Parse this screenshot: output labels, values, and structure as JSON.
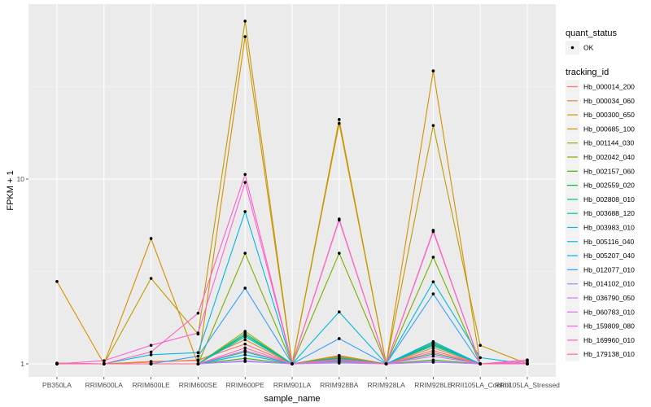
{
  "chart_data": {
    "type": "line",
    "title": "",
    "xlabel": "sample_name",
    "ylabel": "FPKM + 1",
    "yscale": "log10",
    "ylim": [
      0.9,
      85
    ],
    "yticks": [
      1,
      10
    ],
    "ytick_labels": [
      "1",
      "10"
    ],
    "grid": true,
    "categories": [
      "PB350LA",
      "RRIM600LA",
      "RRIM600LE",
      "RRIM600SE",
      "RRIM600PE",
      "RRIM901LA",
      "RRIM928BA",
      "RRIM928LA",
      "RRIM928LE",
      "RRII105LA_Control",
      "RRII105LA_Stressed"
    ],
    "legend_placement": "right",
    "legends": [
      {
        "title": "quant_status",
        "entries": [
          {
            "label": "OK",
            "symbol": "point",
            "color": "#000000"
          }
        ]
      },
      {
        "title": "tracking_id"
      }
    ],
    "series": [
      {
        "name": "Hb_000014_200",
        "color": "#F8766D",
        "values": [
          1.0,
          1.0,
          1.02,
          1.05,
          1.28,
          1.0,
          1.09,
          1.0,
          1.18,
          1.0,
          1.0
        ]
      },
      {
        "name": "Hb_000034_060",
        "color": "#EA8331",
        "values": [
          1.0,
          1.0,
          1.03,
          1.04,
          1.35,
          1.0,
          1.11,
          1.0,
          1.22,
          1.0,
          1.0
        ]
      },
      {
        "name": "Hb_000300_650",
        "color": "#D89000",
        "values": [
          2.79,
          1.0,
          4.77,
          1.0,
          59.0,
          1.0,
          20.0,
          1.0,
          38.5,
          1.0,
          1.0
        ]
      },
      {
        "name": "Hb_000685_100",
        "color": "#C09B00",
        "values": [
          1.0,
          1.0,
          2.9,
          1.45,
          71.6,
          1.0,
          21.0,
          1.0,
          19.5,
          1.26,
          1.0
        ]
      },
      {
        "name": "Hb_001144_030",
        "color": "#A3A500",
        "values": [
          1.0,
          1.0,
          1.0,
          1.0,
          1.5,
          1.0,
          1.1,
          1.0,
          1.3,
          1.0,
          1.0
        ]
      },
      {
        "name": "Hb_002042_040",
        "color": "#7CAE00",
        "values": [
          1.0,
          1.0,
          1.0,
          1.0,
          3.97,
          1.0,
          3.97,
          1.0,
          3.78,
          1.0,
          1.0
        ]
      },
      {
        "name": "Hb_002157_060",
        "color": "#39B600",
        "values": [
          1.0,
          1.0,
          1.0,
          1.0,
          1.07,
          1.0,
          1.03,
          1.0,
          1.05,
          1.0,
          1.0
        ]
      },
      {
        "name": "Hb_002559_020",
        "color": "#00BB4E",
        "values": [
          1.0,
          1.0,
          1.0,
          1.0,
          1.43,
          1.0,
          1.07,
          1.0,
          1.27,
          1.0,
          1.0
        ]
      },
      {
        "name": "Hb_002808_010",
        "color": "#00BF7D",
        "values": [
          1.0,
          1.0,
          1.0,
          1.0,
          1.16,
          1.0,
          1.05,
          1.0,
          1.13,
          1.0,
          1.0
        ]
      },
      {
        "name": "Hb_003688_120",
        "color": "#00C1A3",
        "values": [
          1.0,
          1.0,
          1.0,
          1.0,
          1.46,
          1.0,
          1.08,
          1.0,
          1.29,
          1.0,
          1.0
        ]
      },
      {
        "name": "Hb_003983_010",
        "color": "#00BFC4",
        "values": [
          1.0,
          1.0,
          1.0,
          1.0,
          1.4,
          1.0,
          1.06,
          1.0,
          1.25,
          1.0,
          1.0
        ]
      },
      {
        "name": "Hb_005116_040",
        "color": "#00BAE0",
        "values": [
          1.0,
          1.0,
          1.12,
          1.15,
          6.67,
          1.0,
          1.91,
          1.0,
          2.78,
          1.08,
          1.0
        ]
      },
      {
        "name": "Hb_005207_040",
        "color": "#00B0F6",
        "values": [
          1.0,
          1.0,
          1.0,
          1.0,
          1.12,
          1.0,
          1.04,
          1.0,
          1.32,
          1.0,
          1.0
        ]
      },
      {
        "name": "Hb_012077_010",
        "color": "#35A2FF",
        "values": [
          1.0,
          1.0,
          1.0,
          1.1,
          2.57,
          1.0,
          1.37,
          1.0,
          2.39,
          1.0,
          1.0
        ]
      },
      {
        "name": "Hb_014102_010",
        "color": "#9590FF",
        "values": [
          1.0,
          1.0,
          1.0,
          1.0,
          1.03,
          1.0,
          1.01,
          1.0,
          1.02,
          1.0,
          1.0
        ]
      },
      {
        "name": "Hb_036790_050",
        "color": "#C77CFF",
        "values": [
          1.0,
          1.0,
          1.0,
          1.0,
          1.04,
          1.0,
          1.02,
          1.0,
          1.03,
          1.0,
          1.0
        ]
      },
      {
        "name": "Hb_060783_010",
        "color": "#E76BF3",
        "values": [
          1.0,
          1.0,
          1.0,
          1.0,
          1.18,
          1.0,
          1.04,
          1.0,
          1.1,
          1.0,
          1.0
        ]
      },
      {
        "name": "Hb_159809_080",
        "color": "#FA62DB",
        "values": [
          1.0,
          1.04,
          1.26,
          1.47,
          9.6,
          1.0,
          6.0,
          1.0,
          5.2,
          1.0,
          1.03
        ]
      },
      {
        "name": "Hb_169960_010",
        "color": "#FF62BC",
        "values": [
          1.01,
          1.0,
          1.16,
          1.88,
          10.6,
          1.0,
          6.08,
          1.0,
          5.28,
          1.0,
          1.05
        ]
      },
      {
        "name": "Hb_179138_010",
        "color": "#FF6C91",
        "values": [
          1.0,
          1.0,
          1.0,
          1.0,
          1.22,
          1.0,
          1.06,
          1.0,
          1.15,
          1.0,
          1.01
        ]
      }
    ]
  }
}
